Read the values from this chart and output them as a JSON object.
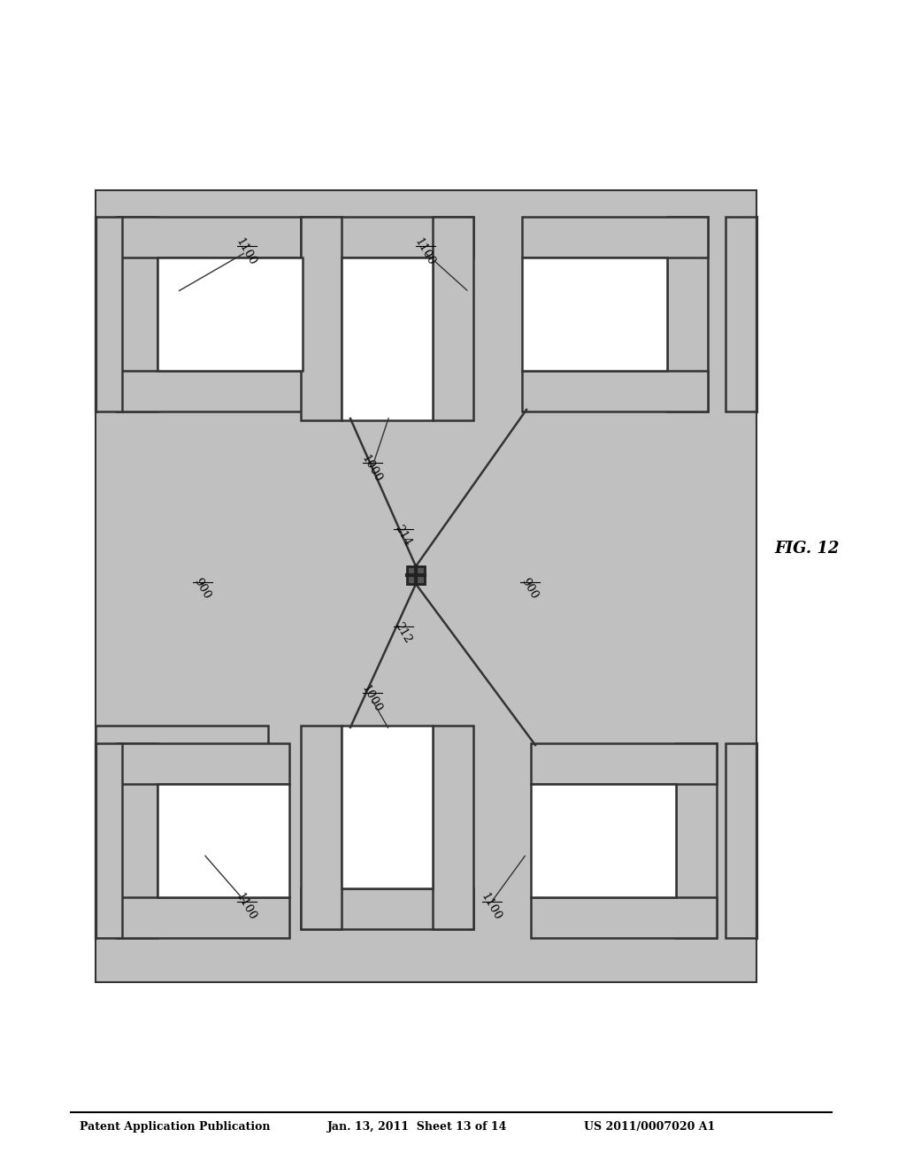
{
  "title_line1": "Patent Application Publication",
  "title_line2": "Jan. 13, 2011  Sheet 13 of 14",
  "title_line3": "US 2011/0007020 A1",
  "fig_label": "FIG. 12",
  "background": "#ffffff",
  "stipple_color": "#c8c8c8",
  "border_color": "#333333",
  "line_color": "#333333",
  "label_900_left": "900",
  "label_900_right": "900",
  "label_1000_top": "1000",
  "label_1000_bottom": "1000",
  "label_1100_tl": "1100",
  "label_1100_tr": "1100",
  "label_1100_bl": "1100",
  "label_1100_br": "1100",
  "label_212": "212",
  "label_214": "214"
}
